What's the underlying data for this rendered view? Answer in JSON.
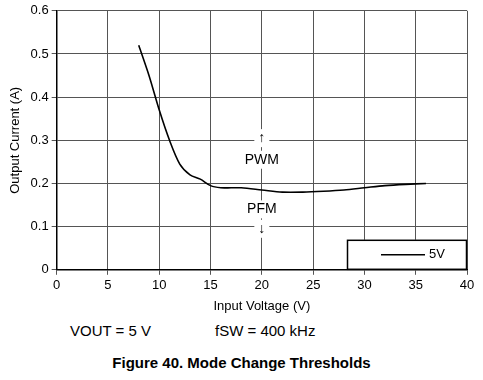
{
  "chart_data": {
    "type": "line",
    "title": "Figure 40. Mode Change Thresholds",
    "x_label": "Input Voltage (V)",
    "y_label": "Output Current (A)",
    "x": [
      8,
      9,
      10,
      11,
      12,
      13,
      14,
      15,
      16,
      17,
      18,
      20,
      22,
      24,
      26,
      28,
      30,
      32,
      34,
      36
    ],
    "series": [
      {
        "name": "5V",
        "color": "#000000",
        "values": [
          0.52,
          0.45,
          0.37,
          0.3,
          0.245,
          0.22,
          0.21,
          0.195,
          0.19,
          0.19,
          0.19,
          0.185,
          0.18,
          0.18,
          0.182,
          0.185,
          0.19,
          0.195,
          0.198,
          0.2
        ]
      }
    ],
    "xlim": [
      0,
      40
    ],
    "xticks": [
      0,
      5,
      10,
      15,
      20,
      25,
      30,
      35,
      40
    ],
    "ylim": [
      0,
      0.6
    ],
    "yticks": [
      0,
      0.1,
      0.2,
      0.3,
      0.4,
      0.5,
      0.6
    ],
    "grid": true,
    "legend": "lower right",
    "annotations": [
      {
        "text": "↑",
        "x": 20,
        "y": 0.305
      },
      {
        "text": "PWM",
        "x": 20,
        "y": 0.255
      },
      {
        "text": "PFM",
        "x": 20,
        "y": 0.14
      },
      {
        "text": "↓",
        "x": 20,
        "y": 0.095
      }
    ],
    "notes": [
      "VOUT = 5 V",
      "fSW = 400 kHz"
    ]
  }
}
